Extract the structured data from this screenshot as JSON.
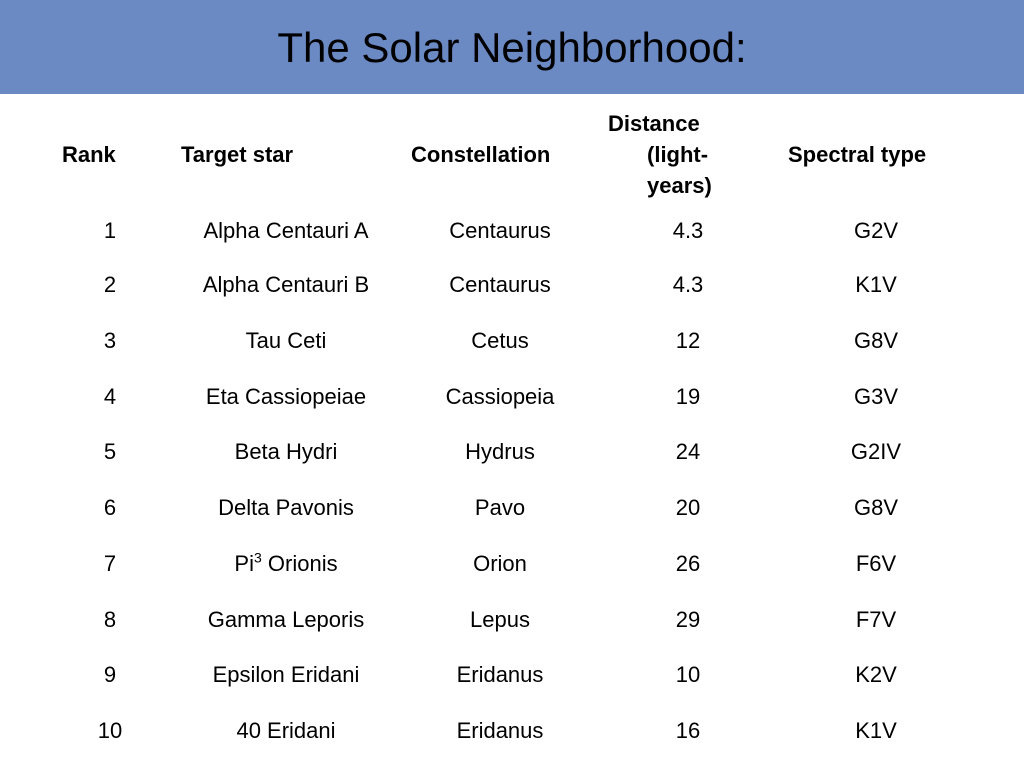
{
  "title": "The Solar Neighborhood:",
  "headers": {
    "rank": "Rank",
    "star": "Target star",
    "constellation": "Constellation",
    "distance_line1": "Distance",
    "distance_line2": "(light-",
    "distance_line3": "years)",
    "spectral": "Spectral type"
  },
  "rows": [
    {
      "rank": "1",
      "star": "Alpha Centauri A",
      "constellation": "Centaurus",
      "distance": "4.3",
      "spectral": "G2V"
    },
    {
      "rank": "2",
      "star": "Alpha Centauri B",
      "constellation": "Centaurus",
      "distance": "4.3",
      "spectral": "K1V"
    },
    {
      "rank": "3",
      "star": "Tau Ceti",
      "constellation": "Cetus",
      "distance": "12",
      "spectral": "G8V"
    },
    {
      "rank": "4",
      "star": "Eta Cassiopeiae",
      "constellation": "Cassiopeia",
      "distance": "19",
      "spectral": "G3V"
    },
    {
      "rank": "5",
      "star": "Beta Hydri",
      "constellation": "Hydrus",
      "distance": "24",
      "spectral": "G2IV"
    },
    {
      "rank": "6",
      "star": "Delta Pavonis",
      "constellation": "Pavo",
      "distance": "20",
      "spectral": "G8V"
    },
    {
      "rank": "7",
      "star": "Pi",
      "star_sup": "3",
      "star_rest": " Orionis",
      "constellation": "Orion",
      "distance": "26",
      "spectral": "F6V"
    },
    {
      "rank": "8",
      "star": "Gamma Leporis",
      "constellation": "Lepus",
      "distance": "29",
      "spectral": "F7V"
    },
    {
      "rank": "9",
      "star": "Epsilon Eridani",
      "constellation": "Eridanus",
      "distance": "10",
      "spectral": "K2V"
    },
    {
      "rank": "10",
      "star": "40 Eridani",
      "constellation": "Eridanus",
      "distance": "16",
      "spectral": "K1V"
    }
  ]
}
